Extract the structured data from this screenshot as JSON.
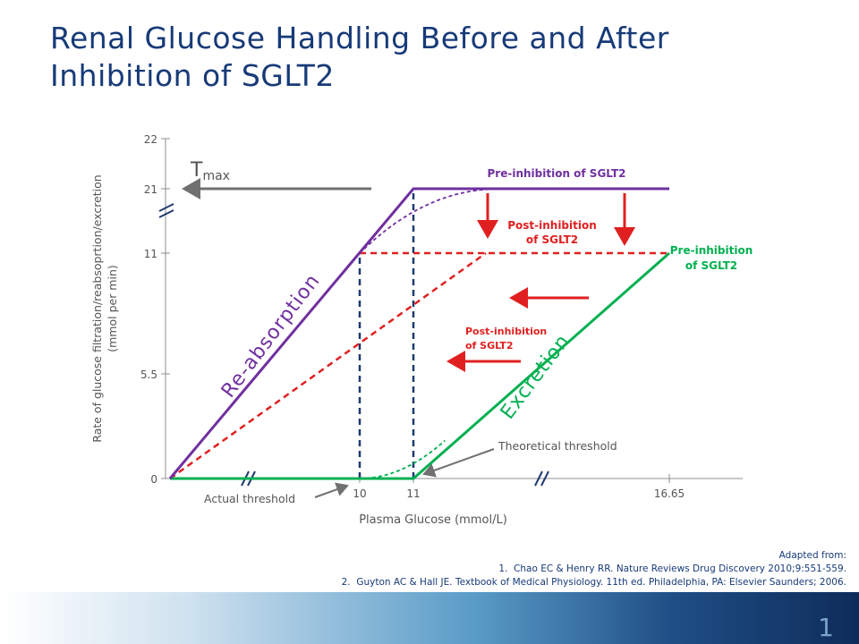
{
  "slide": {
    "title": "Renal Glucose Handling Before and After Inhibition of SGLT2",
    "page_number": "1"
  },
  "references": {
    "heading": "Adapted from:",
    "items": [
      "1.  Chao EC & Henry RR. Nature Reviews Drug Discovery 2010;9:551-559.",
      "2.  Guyton AC & Hall JE. Textbook of Medical Physiology. 11th ed. Philadelphia, PA: Elsevier Saunders; 2006."
    ]
  },
  "colors": {
    "title": "#173a78",
    "reabsorption": "#7030a0",
    "excretion": "#00b050",
    "post_inhibition": "#e02020",
    "threshold_dash": "#1f3a6e",
    "axis": "#808080",
    "gray_arrow": "#707070"
  },
  "chart_data": {
    "type": "line",
    "xlabel": "Plasma Glucose (mmol/L)",
    "ylabel_lines": [
      "Rate of glucose filtration/reabsoprtion/excretion",
      "(mmol per min)"
    ],
    "x_ticks": [
      {
        "value": 10,
        "label": "10"
      },
      {
        "value": 11,
        "label": "11"
      },
      {
        "value": 16.65,
        "label": "16.65"
      }
    ],
    "y_ticks": [
      {
        "value": 0,
        "label": "0"
      },
      {
        "value": 5.5,
        "label": "5.5"
      },
      {
        "value": 11,
        "label": "11"
      },
      {
        "value": 21,
        "label": "21"
      },
      {
        "value": 22,
        "label": "22"
      }
    ],
    "axis_breaks": "y between 11 and 21; x between 0 and 10; x between 11 and 16.65",
    "series": [
      {
        "role": "reabsorption_pre",
        "style": "solid",
        "points": [
          [
            0,
            0
          ],
          [
            11,
            21
          ],
          [
            16.65,
            21
          ]
        ]
      },
      {
        "role": "reabsorption_splay",
        "style": "dashed",
        "points": [
          [
            10,
            11
          ],
          [
            13,
            21
          ]
        ]
      },
      {
        "role": "excretion_pre",
        "style": "solid",
        "points": [
          [
            0,
            0
          ],
          [
            11,
            0
          ],
          [
            16.65,
            11
          ]
        ]
      },
      {
        "role": "excretion_splay",
        "style": "dashed",
        "points": [
          [
            10,
            0
          ],
          [
            11.7,
            2
          ]
        ]
      },
      {
        "role": "excretion_post",
        "style": "dashed",
        "points": [
          [
            0,
            0
          ],
          [
            12.6,
            11
          ]
        ]
      },
      {
        "role": "reabsorption_post",
        "style": "dashed",
        "points": [
          [
            10,
            11
          ],
          [
            16.65,
            11
          ]
        ]
      },
      {
        "role": "actual_threshold",
        "style": "dashed",
        "points": [
          [
            10,
            0
          ],
          [
            10,
            11
          ]
        ]
      },
      {
        "role": "theoretical_threshold",
        "style": "dashed",
        "points": [
          [
            11,
            0
          ],
          [
            11,
            21
          ]
        ]
      }
    ],
    "annotations": {
      "tmax_main": "T",
      "tmax_sub": "max",
      "pre_inhibition_top": "Pre-inhibition of SGLT2",
      "post_inhibition_top_1": "Post-inhibition",
      "post_inhibition_top_2": "of SGLT2",
      "pre_inhibition_right_1": "Pre-inhibition",
      "pre_inhibition_right_2": "of SGLT2",
      "post_inhibition_mid_1": "Post-inhibition",
      "post_inhibition_mid_2": "of SGLT2",
      "reabsorption": "Re-absorption",
      "excretion": "Excretion",
      "actual_threshold": "Actual threshold",
      "theoretical_threshold": "Theoretical threshold"
    }
  }
}
